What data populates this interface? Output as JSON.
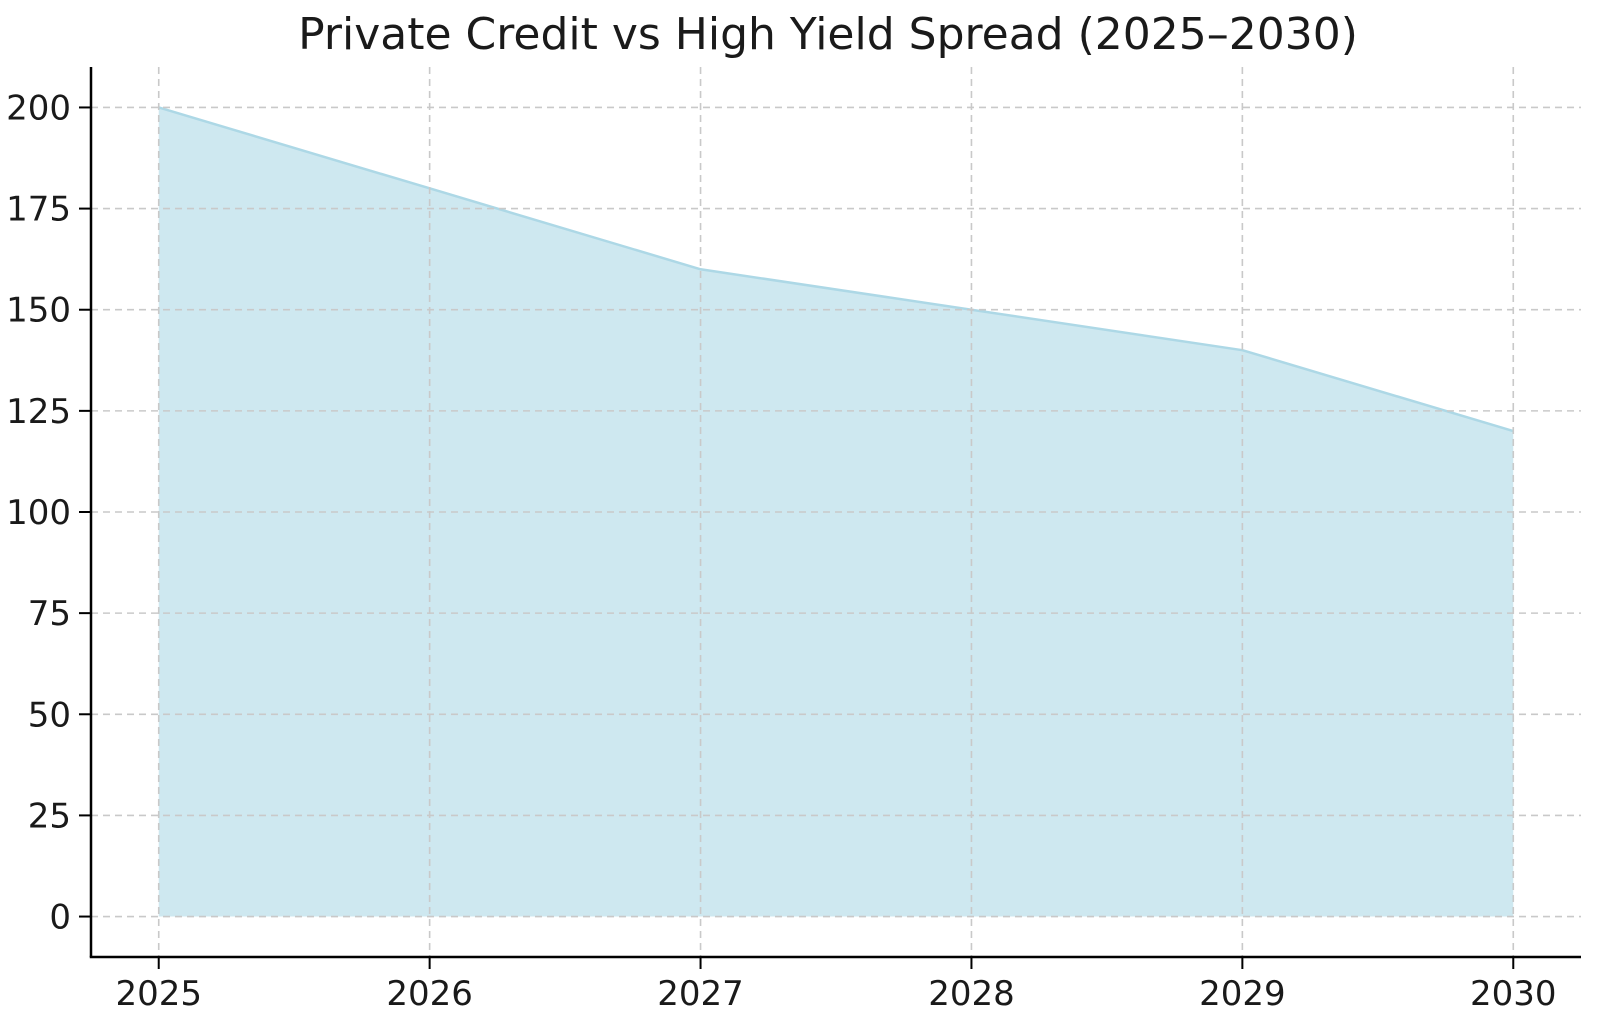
{
  "chart_data": {
    "type": "area",
    "title": "Private Credit vs High Yield Spread (2025–2030)",
    "x": [
      2025,
      2026,
      2027,
      2028,
      2029,
      2030
    ],
    "values": [
      200,
      180,
      160,
      150,
      140,
      120
    ],
    "xticks": [
      2025,
      2026,
      2027,
      2028,
      2029,
      2030
    ],
    "yticks": [
      0,
      25,
      50,
      75,
      100,
      125,
      150,
      175,
      200
    ],
    "xlim": [
      2024.75,
      2030.25
    ],
    "ylim": [
      -10,
      210
    ],
    "xlabel": "",
    "ylabel": "",
    "grid": true,
    "legend": false,
    "colors": {
      "fill": "#ADD8E6",
      "fill_alpha": 0.6,
      "line": "#ADD8E6",
      "grid": "#c9c9c9",
      "axis": "#000000",
      "text": "#1a1a1a",
      "background": "#ffffff"
    }
  }
}
